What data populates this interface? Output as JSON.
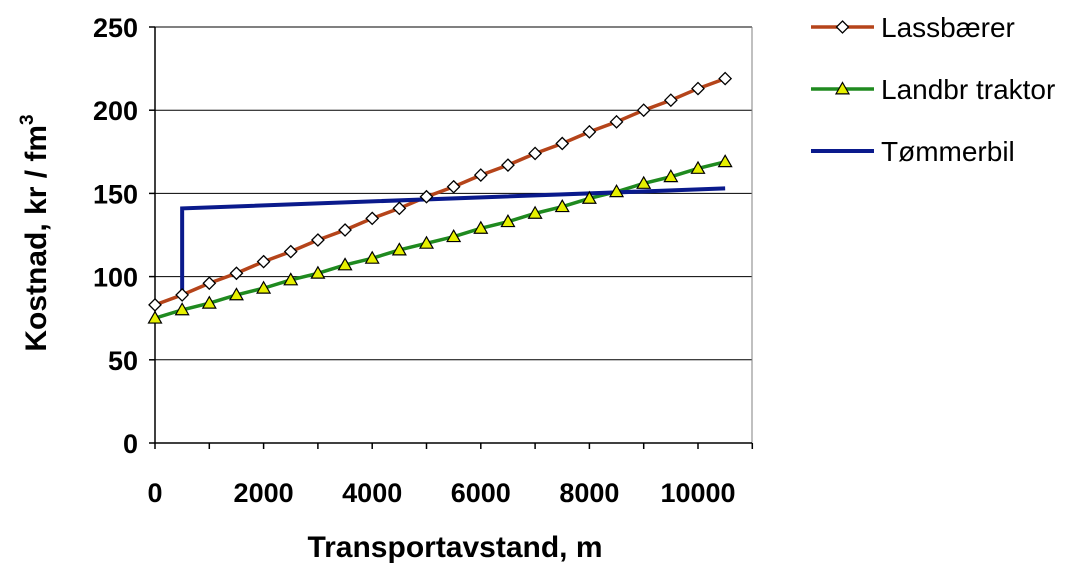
{
  "chart_data": {
    "type": "line",
    "xlabel": "Transportavstand, m",
    "ylabel_main": "Kostnad, kr / fm",
    "ylabel_sup": "3",
    "xlim": [
      0,
      11000
    ],
    "ylim": [
      0,
      250
    ],
    "x_ticks": [
      "0",
      "2000",
      "4000",
      "6000",
      "8000",
      "10000"
    ],
    "x_tick_values": [
      0,
      2000,
      4000,
      6000,
      8000,
      10000
    ],
    "y_ticks": [
      "0",
      "50",
      "100",
      "150",
      "200",
      "250"
    ],
    "y_tick_values": [
      0,
      50,
      100,
      150,
      200,
      250
    ],
    "grid": "horizontal",
    "legend_position": "right",
    "series": [
      {
        "name": "Lassbærer",
        "color": "#b5441a",
        "marker": "diamond",
        "x": [
          0,
          500,
          1000,
          1500,
          2000,
          2500,
          3000,
          3500,
          4000,
          4500,
          5000,
          5500,
          6000,
          6500,
          7000,
          7500,
          8000,
          8500,
          9000,
          9500,
          10000,
          10500
        ],
        "y": [
          83,
          89,
          96,
          102,
          109,
          115,
          122,
          128,
          135,
          141,
          148,
          154,
          161,
          167,
          174,
          180,
          187,
          193,
          200,
          206,
          213,
          219
        ]
      },
      {
        "name": "Landbr traktor",
        "color": "#1f8a1f",
        "marker_fill": "#e6f000",
        "marker": "triangle",
        "x": [
          0,
          500,
          1000,
          1500,
          2000,
          2500,
          3000,
          3500,
          4000,
          4500,
          5000,
          5500,
          6000,
          6500,
          7000,
          7500,
          8000,
          8500,
          9000,
          9500,
          10000,
          10500
        ],
        "y": [
          75,
          80,
          84,
          89,
          93,
          98,
          102,
          107,
          111,
          116,
          120,
          124,
          129,
          133,
          138,
          142,
          147,
          151,
          156,
          160,
          165,
          169
        ]
      },
      {
        "name": "Tømmerbil",
        "color": "#0a1a8c",
        "marker": "none",
        "x": [
          500,
          500,
          10500
        ],
        "y": [
          88,
          141,
          153
        ]
      }
    ]
  }
}
